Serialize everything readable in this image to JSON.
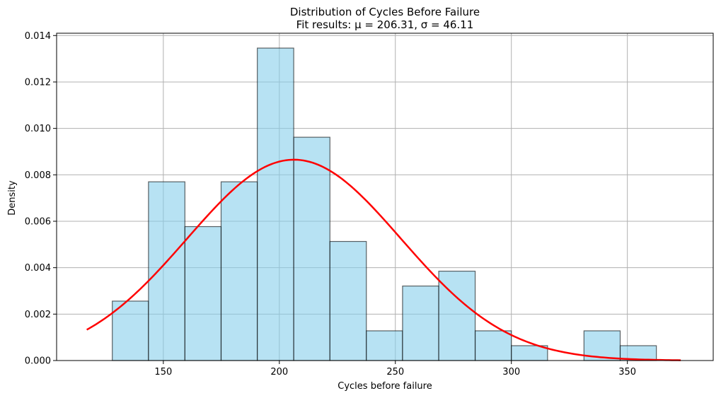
{
  "chart_data": {
    "type": "histogram",
    "title": "Distribution of Cycles Before Failure",
    "subtitle": "Fit results: μ = 206.31,  σ = 46.11",
    "xlabel": "Cycles before failure",
    "ylabel": "Density",
    "xlim": [
      104,
      387
    ],
    "ylim": [
      0,
      0.0141
    ],
    "xticks": [
      150,
      200,
      250,
      300,
      350
    ],
    "yticks": [
      0.0,
      0.002,
      0.004,
      0.006,
      0.008,
      0.01,
      0.012,
      0.014
    ],
    "ytick_labels": [
      "0.000",
      "0.002",
      "0.004",
      "0.006",
      "0.008",
      "0.010",
      "0.012",
      "0.014"
    ],
    "grid": true,
    "bins": [
      {
        "x0": 128.0,
        "x1": 143.6,
        "density": 0.00256
      },
      {
        "x0": 143.6,
        "x1": 159.3,
        "density": 0.0077
      },
      {
        "x0": 159.3,
        "x1": 174.9,
        "density": 0.00577
      },
      {
        "x0": 174.9,
        "x1": 190.5,
        "density": 0.0077
      },
      {
        "x0": 190.5,
        "x1": 206.2,
        "density": 0.01346
      },
      {
        "x0": 206.2,
        "x1": 221.8,
        "density": 0.00962
      },
      {
        "x0": 221.8,
        "x1": 237.5,
        "density": 0.00513
      },
      {
        "x0": 237.5,
        "x1": 253.1,
        "density": 0.00128
      },
      {
        "x0": 253.1,
        "x1": 268.7,
        "density": 0.00321
      },
      {
        "x0": 268.7,
        "x1": 284.4,
        "density": 0.00385
      },
      {
        "x0": 284.4,
        "x1": 300.0,
        "density": 0.00128
      },
      {
        "x0": 300.0,
        "x1": 315.6,
        "density": 0.00064
      },
      {
        "x0": 315.6,
        "x1": 331.3,
        "density": 0.0
      },
      {
        "x0": 331.3,
        "x1": 346.9,
        "density": 0.00128
      },
      {
        "x0": 346.9,
        "x1": 362.5,
        "density": 0.00064
      }
    ],
    "fit": {
      "distribution": "normal",
      "mu": 206.31,
      "sigma": 46.11,
      "x_range": [
        117,
        373
      ],
      "color": "#ff0000"
    },
    "bar_color": "#87ceeb"
  }
}
